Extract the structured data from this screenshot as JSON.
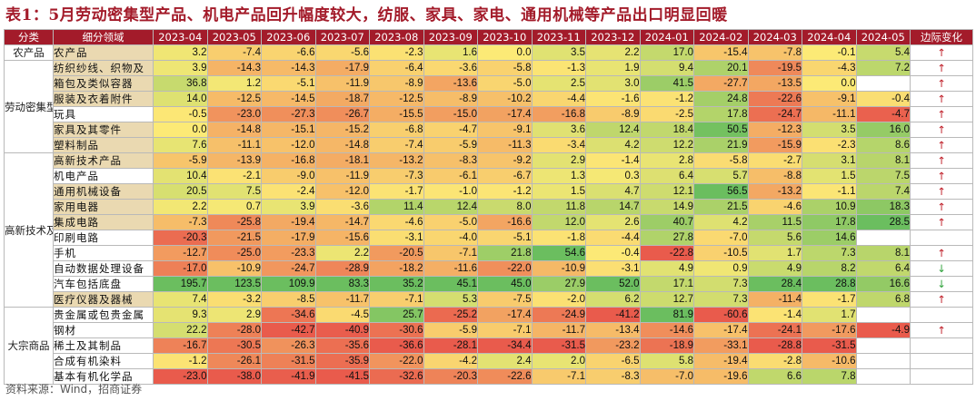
{
  "title": "表1：5月劳动密集型产品、机电产品回升幅度较大，纺服、家具、家电、通用机械等产品出口明显回暖",
  "source": "资料来源：Wind，招商证券",
  "colors": {
    "header_bg": "#a31b2a",
    "highlight": "#ead9b1",
    "up_arrow": "#c0202a",
    "down_arrow": "#2fa23c"
  },
  "table": {
    "headers": [
      "分类",
      "细分领域",
      "2023-04",
      "2023-05",
      "2023-06",
      "2023-07",
      "2023-08",
      "2023-09",
      "2023-10",
      "2023-11",
      "2023-12",
      "2024-01",
      "2024-02",
      "2024-03",
      "2024-04",
      "2024-05",
      "边际变化"
    ],
    "groups": [
      {
        "category": "农产品",
        "rows": [
          {
            "name": "农产品",
            "hl": true,
            "values": [
              "3.2",
              "-7.4",
              "-6.6",
              "-5.6",
              "-2.3",
              "1.6",
              "0.0",
              "3.5",
              "2.2",
              "17.0",
              "-15.4",
              "-7.8",
              "-0.1",
              "5.4"
            ],
            "change": "↑"
          }
        ]
      },
      {
        "category": "劳动密集型产品",
        "rows": [
          {
            "name": "纺织纱线、织物及",
            "hl": true,
            "values": [
              "3.9",
              "-14.3",
              "-14.3",
              "-17.9",
              "-6.4",
              "-3.6",
              "-5.8",
              "-1.3",
              "1.9",
              "9.4",
              "20.1",
              "-19.5",
              "-4.3",
              "7.2"
            ],
            "change": "↑"
          },
          {
            "name": "箱包及类似容器",
            "hl": true,
            "values": [
              "36.8",
              "1.2",
              "-5.1",
              "-11.9",
              "-8.9",
              "-13.6",
              "-5.0",
              "2.5",
              "3.0",
              "41.5",
              "-27.7",
              "-13.5",
              "0.0",
              ""
            ],
            "change": "↑"
          },
          {
            "name": "服装及衣着附件",
            "hl": true,
            "values": [
              "14.0",
              "-12.5",
              "-14.5",
              "-18.7",
              "-12.5",
              "-8.9",
              "-10.2",
              "-4.4",
              "-1.6",
              "-1.2",
              "24.8",
              "-22.6",
              "-9.1",
              "-0.4"
            ],
            "change": "↑"
          },
          {
            "name": "玩具",
            "hl": false,
            "values": [
              "-0.5",
              "-23.0",
              "-27.3",
              "-26.7",
              "-15.5",
              "-15.0",
              "-17.4",
              "-16.8",
              "-8.9",
              "-2.5",
              "17.8",
              "-24.7",
              "-11.1",
              "-4.7"
            ],
            "change": "↑"
          },
          {
            "name": "家具及其零件",
            "hl": true,
            "values": [
              "0.0",
              "-14.8",
              "-15.1",
              "-15.2",
              "-6.8",
              "-4.7",
              "-9.1",
              "3.6",
              "12.4",
              "18.4",
              "50.5",
              "-12.3",
              "3.5",
              "16.0"
            ],
            "change": "↑"
          },
          {
            "name": "塑料制品",
            "hl": true,
            "values": [
              "7.6",
              "-11.1",
              "-12.0",
              "-14.8",
              "-7.4",
              "-5.9",
              "-11.3",
              "-3.4",
              "4.2",
              "12.2",
              "21.9",
              "-15.9",
              "-2.3",
              "8.6"
            ],
            "change": "↑"
          }
        ]
      },
      {
        "category": "高新技术及机电产品",
        "rows": [
          {
            "name": "高新技术产品",
            "hl": true,
            "values": [
              "-5.9",
              "-13.9",
              "-16.8",
              "-18.1",
              "-13.2",
              "-8.3",
              "-9.2",
              "2.9",
              "-1.4",
              "2.8",
              "-5.8",
              "-2.7",
              "3.1",
              "8.1"
            ],
            "change": "↑"
          },
          {
            "name": "机电产品",
            "hl": false,
            "values": [
              "10.4",
              "-2.1",
              "-9.0",
              "-11.9",
              "-7.3",
              "-6.1",
              "-6.7",
              "1.3",
              "0.3",
              "6.4",
              "5.7",
              "-8.8",
              "1.5",
              "7.5"
            ],
            "change": "↑"
          },
          {
            "name": "通用机械设备",
            "hl": true,
            "values": [
              "20.5",
              "7.5",
              "-2.4",
              "-12.0",
              "-1.7",
              "-1.0",
              "-1.2",
              "1.5",
              "4.7",
              "12.1",
              "56.5",
              "-13.2",
              "-1.1",
              "7.4"
            ],
            "change": "↑"
          },
          {
            "name": "家用电器",
            "hl": true,
            "values": [
              "2.2",
              "0.7",
              "3.9",
              "-3.6",
              "11.4",
              "12.4",
              "8.0",
              "11.8",
              "14.7",
              "14.9",
              "21.5",
              "-4.6",
              "10.9",
              "18.3"
            ],
            "change": "↑"
          },
          {
            "name": "集成电路",
            "hl": true,
            "values": [
              "-7.3",
              "-25.8",
              "-19.4",
              "-14.7",
              "-4.6",
              "-5.0",
              "-16.6",
              "12.0",
              "2.6",
              "40.7",
              "4.2",
              "11.5",
              "17.8",
              "28.5"
            ],
            "change": "↑"
          },
          {
            "name": "印刷电路",
            "hl": false,
            "values": [
              "-20.3",
              "-21.5",
              "-17.9",
              "-15.6",
              "-3.1",
              "-4.0",
              "-5.1",
              "-1.8",
              "-4.4",
              "27.8",
              "-7.0",
              "5.6",
              "14.6",
              ""
            ],
            "change": ""
          },
          {
            "name": "手机",
            "hl": false,
            "values": [
              "-12.7",
              "-25.0",
              "-23.3",
              "2.2",
              "-20.5",
              "-7.1",
              "21.8",
              "54.6",
              "-0.4",
              "-22.8",
              "-10.5",
              "1.7",
              "7.3",
              "8.1"
            ],
            "change": "↑"
          },
          {
            "name": "自动数据处理设备",
            "hl": false,
            "values": [
              "-17.0",
              "-10.9",
              "-24.7",
              "-28.9",
              "-18.2",
              "-11.6",
              "-22.0",
              "-10.9",
              "-3.1",
              "4.9",
              "0.9",
              "4.9",
              "8.2",
              "6.4"
            ],
            "change": "↓"
          },
          {
            "name": "汽车包括底盘",
            "hl": false,
            "values": [
              "195.7",
              "123.5",
              "109.9",
              "83.3",
              "35.2",
              "45.1",
              "45.0",
              "27.9",
              "52.0",
              "17.1",
              "7.3",
              "28.4",
              "28.8",
              "16.6"
            ],
            "change": "↓"
          },
          {
            "name": "医疗仪器及器械",
            "hl": true,
            "values": [
              "7.4",
              "-3.2",
              "-8.5",
              "-11.7",
              "-7.1",
              "5.3",
              "-7.5",
              "-2.0",
              "6.2",
              "12.7",
              "7.3",
              "-11.4",
              "-1.7",
              "6.8"
            ],
            "change": "↑"
          }
        ]
      },
      {
        "category": "大宗商品",
        "rows": [
          {
            "name": "贵金属或包贵金属",
            "hl": false,
            "values": [
              "9.3",
              "2.9",
              "-34.6",
              "-4.5",
              "25.7",
              "-25.2",
              "-17.4",
              "-24.9",
              "-41.2",
              "81.9",
              "-60.6",
              "-1.4",
              "1.7",
              ""
            ],
            "change": ""
          },
          {
            "name": "钢材",
            "hl": false,
            "values": [
              "22.2",
              "-28.0",
              "-42.7",
              "-40.9",
              "-30.6",
              "-5.9",
              "-7.1",
              "-11.7",
              "-13.4",
              "-14.6",
              "-17.4",
              "-24.1",
              "-17.6",
              "-4.9"
            ],
            "change": "↑"
          },
          {
            "name": "稀土及其制品",
            "hl": false,
            "values": [
              "-16.7",
              "-30.5",
              "-26.3",
              "-35.6",
              "-36.6",
              "-28.1",
              "-34.4",
              "-31.5",
              "-23.2",
              "-18.9",
              "-33.1",
              "-28.8",
              "-31.5",
              ""
            ],
            "change": ""
          },
          {
            "name": "合成有机染料",
            "hl": false,
            "values": [
              "-1.2",
              "-26.1",
              "-31.5",
              "-35.9",
              "-22.0",
              "-4.2",
              "2.4",
              "2.0",
              "-6.5",
              "5.8",
              "-19.4",
              "-2.8",
              "-10.6",
              ""
            ],
            "change": ""
          },
          {
            "name": "基本有机化学品",
            "hl": false,
            "values": [
              "-23.0",
              "-38.0",
              "-41.9",
              "-41.5",
              "-32.6",
              "-20.3",
              "-22.6",
              "-7.1",
              "-8.3",
              "-7.0",
              "-19.6",
              "6.6",
              "7.8",
              ""
            ],
            "change": ""
          }
        ]
      }
    ]
  }
}
